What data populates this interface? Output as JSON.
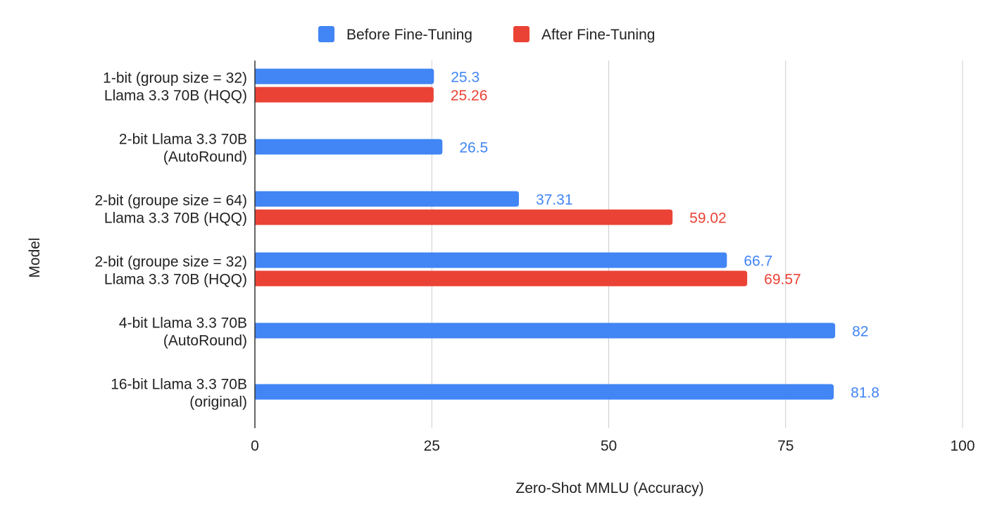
{
  "chart_data": {
    "type": "bar",
    "orientation": "horizontal",
    "title": "",
    "xlabel": "Zero-Shot MMLU (Accuracy)",
    "ylabel": "Model",
    "xlim": [
      0,
      100
    ],
    "x_ticks": [
      0,
      25,
      50,
      75,
      100
    ],
    "grid": true,
    "legend_position": "top",
    "categories": [
      [
        "1-bit (group size = 32)",
        "Llama 3.3 70B (HQQ)"
      ],
      [
        "2-bit Llama 3.3 70B",
        "(AutoRound)"
      ],
      [
        "2-bit (groupe size = 64)",
        "Llama 3.3 70B (HQQ)"
      ],
      [
        "2-bit (groupe size = 32)",
        "Llama 3.3 70B (HQQ)"
      ],
      [
        "4-bit Llama 3.3 70B",
        "(AutoRound)"
      ],
      [
        "16-bit Llama 3.3 70B",
        "(original)"
      ]
    ],
    "series": [
      {
        "name": "Before Fine-Tuning",
        "color": "#4285f4",
        "values": [
          25.3,
          26.5,
          37.31,
          66.7,
          82,
          81.8
        ],
        "labels": [
          "25.3",
          "26.5",
          "37.31",
          "66.7",
          "82",
          "81.8"
        ]
      },
      {
        "name": "After Fine-Tuning",
        "color": "#ea4335",
        "values": [
          25.26,
          null,
          59.02,
          69.57,
          null,
          null
        ],
        "labels": [
          "25.26",
          null,
          "59.02",
          "69.57",
          null,
          null
        ]
      }
    ]
  }
}
